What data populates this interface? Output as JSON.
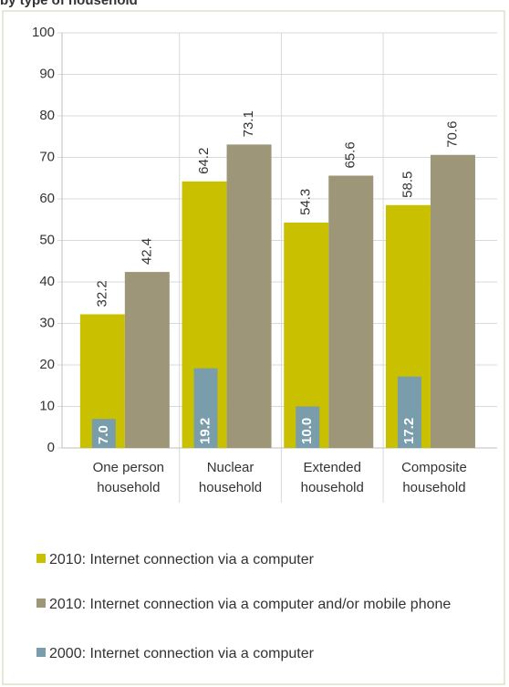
{
  "chart_data": {
    "type": "bar",
    "title": "by type of household",
    "categories": [
      [
        "One person",
        "household"
      ],
      [
        "Nuclear",
        "household"
      ],
      [
        "Extended",
        "household"
      ],
      [
        "Composite",
        "household"
      ]
    ],
    "series": [
      {
        "name": "2010: Internet connection via a computer",
        "color": "#c9c000",
        "values": [
          32.2,
          64.2,
          54.3,
          58.5
        ],
        "value_labels": [
          "32.2",
          "64.2",
          "54.3",
          "58.5"
        ]
      },
      {
        "name": "2010: Internet connection via a computer and/or mobile phone",
        "color": "#9d9679",
        "values": [
          42.4,
          73.1,
          65.6,
          70.6
        ],
        "value_labels": [
          "42.4",
          "73.1",
          "65.6",
          "70.6"
        ]
      },
      {
        "name": "2000: Internet connection via a computer",
        "color": "#7a9dab",
        "values": [
          7,
          19.2,
          10,
          17.2
        ],
        "value_labels": [
          "7.0",
          "19.2",
          "10.0",
          "17.2"
        ]
      }
    ],
    "ylim": [
      0,
      100
    ],
    "yticks": [
      0,
      10,
      20,
      30,
      40,
      50,
      60,
      70,
      80,
      90,
      100
    ],
    "grid": true
  }
}
